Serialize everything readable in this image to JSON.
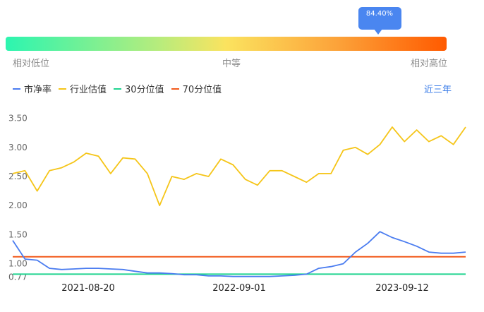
{
  "percentile": {
    "label": "84.40%",
    "value": 0.844
  },
  "scale": {
    "low": "相对低位",
    "mid": "中等",
    "high": "相对高位"
  },
  "period_selector": "近三年",
  "colors": {
    "pb": "#4a7cf0",
    "industry": "#f5c518",
    "p30": "#1fd48f",
    "p70": "#f25a1c",
    "accent": "#4a86f0"
  },
  "chart_data": {
    "type": "line",
    "title": "",
    "xlabel": "",
    "ylabel": "",
    "ylim": [
      0.77,
      3.55
    ],
    "yticks": [
      0.77,
      1.0,
      1.5,
      2.0,
      2.5,
      3.0,
      3.5
    ],
    "ytick_labels": [
      "0.77",
      "1.00",
      "1.50",
      "2.00",
      "2.50",
      "3.00",
      "3.50"
    ],
    "xticks": [
      "2021-08-20",
      "2022-09-01",
      "2023-09-12"
    ],
    "grid": false,
    "legend": "top-left",
    "x": [
      "2021-01",
      "2021-02",
      "2021-03",
      "2021-04",
      "2021-05",
      "2021-06",
      "2021-07",
      "2021-08",
      "2021-09",
      "2021-10",
      "2021-11",
      "2021-12",
      "2022-01",
      "2022-02",
      "2022-03",
      "2022-04",
      "2022-05",
      "2022-06",
      "2022-07",
      "2022-08",
      "2022-09",
      "2022-10",
      "2022-11",
      "2022-12",
      "2023-01",
      "2023-02",
      "2023-03",
      "2023-04",
      "2023-05",
      "2023-06",
      "2023-07",
      "2023-08",
      "2023-09",
      "2023-10",
      "2023-11",
      "2023-12",
      "2024-01",
      "2024-02"
    ],
    "series": [
      {
        "name": "市净率",
        "values": [
          1.4,
          1.08,
          1.06,
          0.92,
          0.9,
          0.91,
          0.92,
          0.92,
          0.91,
          0.9,
          0.87,
          0.84,
          0.84,
          0.83,
          0.81,
          0.81,
          0.79,
          0.79,
          0.78,
          0.78,
          0.78,
          0.78,
          0.79,
          0.8,
          0.82,
          0.92,
          0.95,
          1.0,
          1.2,
          1.35,
          1.55,
          1.45,
          1.38,
          1.3,
          1.2,
          1.18,
          1.18,
          1.2
        ]
      },
      {
        "name": "行业估值",
        "values": [
          2.55,
          2.6,
          2.25,
          2.6,
          2.65,
          2.75,
          2.9,
          2.85,
          2.55,
          2.82,
          2.8,
          2.55,
          2.0,
          2.5,
          2.45,
          2.55,
          2.5,
          2.8,
          2.7,
          2.45,
          2.35,
          2.6,
          2.6,
          2.5,
          2.4,
          2.55,
          2.55,
          2.95,
          3.0,
          2.88,
          3.05,
          3.35,
          3.1,
          3.3,
          3.1,
          3.2,
          3.05,
          3.35
        ]
      },
      {
        "name": "30分位值",
        "values": [
          0.82,
          0.82,
          0.82,
          0.82,
          0.82,
          0.82,
          0.82,
          0.82,
          0.82,
          0.82,
          0.82,
          0.82,
          0.82,
          0.82,
          0.82,
          0.82,
          0.82,
          0.82,
          0.82,
          0.82,
          0.82,
          0.82,
          0.82,
          0.82,
          0.82,
          0.82,
          0.82,
          0.82,
          0.82,
          0.82,
          0.82,
          0.82,
          0.82,
          0.82,
          0.82,
          0.82,
          0.82,
          0.82
        ]
      },
      {
        "name": "70分位值",
        "values": [
          1.12,
          1.12,
          1.12,
          1.12,
          1.12,
          1.12,
          1.12,
          1.12,
          1.12,
          1.12,
          1.12,
          1.12,
          1.12,
          1.12,
          1.12,
          1.12,
          1.12,
          1.12,
          1.12,
          1.12,
          1.12,
          1.12,
          1.12,
          1.12,
          1.12,
          1.12,
          1.12,
          1.12,
          1.12,
          1.12,
          1.12,
          1.12,
          1.12,
          1.12,
          1.12,
          1.12,
          1.12,
          1.12
        ]
      }
    ]
  }
}
